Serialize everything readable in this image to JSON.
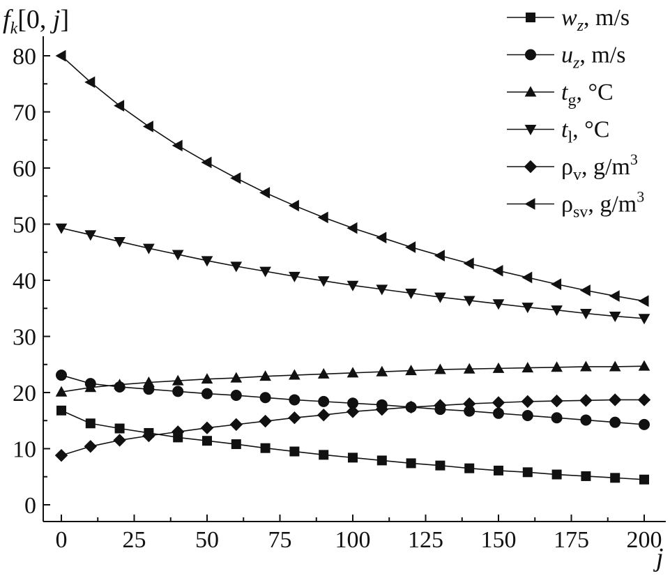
{
  "chart_data": {
    "type": "line",
    "ylabel": {
      "symbol": "f",
      "subscript": "k",
      "bracket": "[0, ",
      "index": "j",
      "close": "]"
    },
    "xlabel": "j",
    "xlim": [
      0,
      200
    ],
    "ylim": [
      0,
      80
    ],
    "xticks": [
      "0",
      "25",
      "50",
      "75",
      "100",
      "125",
      "150",
      "175",
      "200"
    ],
    "yticks": [
      "0",
      "10",
      "20",
      "30",
      "40",
      "50",
      "60",
      "70",
      "80"
    ],
    "grid": false,
    "legend_position": "top-right",
    "x": [
      0,
      10,
      20,
      30,
      40,
      50,
      60,
      70,
      80,
      90,
      100,
      110,
      120,
      130,
      140,
      150,
      160,
      170,
      180,
      190,
      200
    ],
    "series": [
      {
        "legend_symbol": "w",
        "legend_subscript": "z",
        "legend_unit": ", m/s",
        "legend_unit_sup": "",
        "marker": "square",
        "values": [
          16.8,
          14.5,
          13.6,
          12.8,
          12.0,
          11.4,
          10.8,
          10.1,
          9.5,
          8.9,
          8.4,
          7.9,
          7.4,
          7.0,
          6.5,
          6.1,
          5.8,
          5.4,
          5.1,
          4.8,
          4.5
        ]
      },
      {
        "legend_symbol": "u",
        "legend_subscript": "z",
        "legend_unit": ", m/s",
        "legend_unit_sup": "",
        "marker": "circle",
        "values": [
          23.1,
          21.6,
          21.0,
          20.6,
          20.2,
          19.8,
          19.5,
          19.1,
          18.7,
          18.4,
          18.1,
          17.8,
          17.4,
          17.0,
          16.7,
          16.3,
          15.9,
          15.5,
          15.1,
          14.7,
          14.3
        ]
      },
      {
        "legend_symbol": "t",
        "legend_subscript": "g",
        "legend_unit": ", °C",
        "legend_unit_sup": "",
        "marker": "triangle-up",
        "values": [
          20.1,
          20.9,
          21.4,
          21.8,
          22.1,
          22.4,
          22.6,
          22.9,
          23.1,
          23.3,
          23.5,
          23.7,
          23.9,
          24.1,
          24.2,
          24.3,
          24.4,
          24.5,
          24.6,
          24.6,
          24.7
        ]
      },
      {
        "legend_symbol": "t",
        "legend_subscript": "l",
        "legend_unit": ", °C",
        "legend_unit_sup": "",
        "marker": "triangle-down",
        "values": [
          49.3,
          48.1,
          46.9,
          45.7,
          44.6,
          43.5,
          42.5,
          41.6,
          40.7,
          39.9,
          39.1,
          38.4,
          37.7,
          37.0,
          36.4,
          35.8,
          35.2,
          34.7,
          34.1,
          33.6,
          33.2
        ]
      },
      {
        "legend_symbol": "ρ",
        "legend_subscript": "v",
        "legend_unit": ", g/m",
        "legend_unit_sup": "3",
        "marker": "diamond",
        "values": [
          8.8,
          10.4,
          11.5,
          12.3,
          13.0,
          13.7,
          14.3,
          14.9,
          15.5,
          16.0,
          16.6,
          17.0,
          17.4,
          17.7,
          18.0,
          18.2,
          18.4,
          18.5,
          18.6,
          18.7,
          18.7
        ]
      },
      {
        "legend_symbol": "ρ",
        "legend_subscript": "sv",
        "legend_unit": ", g/m",
        "legend_unit_sup": "3",
        "marker": "triangle-left",
        "values": [
          80.0,
          75.3,
          71.1,
          67.4,
          64.0,
          61.0,
          58.2,
          55.6,
          53.3,
          51.2,
          49.3,
          47.6,
          45.9,
          44.4,
          43.0,
          41.7,
          40.5,
          39.3,
          38.2,
          37.2,
          36.3
        ]
      }
    ]
  }
}
